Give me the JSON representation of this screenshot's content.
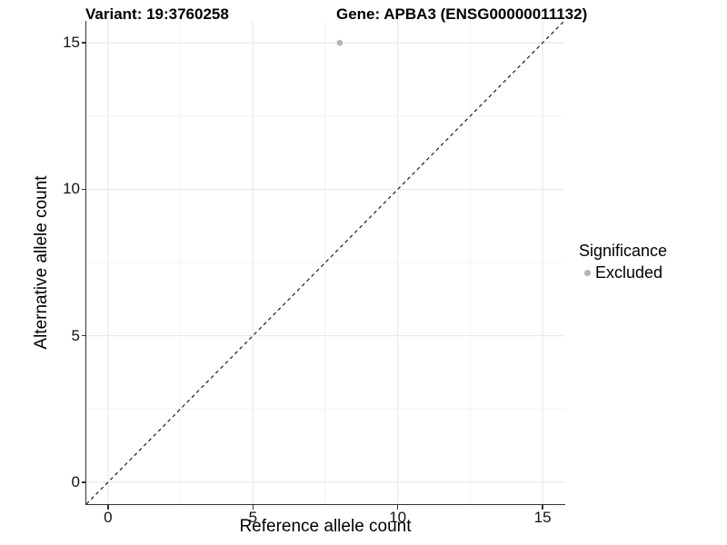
{
  "titles": {
    "variant": "Variant: 19:3760258",
    "gene": "Gene: APBA3 (ENSG00000011132)"
  },
  "axes": {
    "x": {
      "label": "Reference allele count",
      "tick_labels": [
        "0",
        "5",
        "10",
        "15"
      ]
    },
    "y": {
      "label": "Alternative allele count",
      "tick_labels": [
        "0",
        "5",
        "10",
        "15"
      ]
    }
  },
  "legend": {
    "title": "Significance",
    "items": [
      {
        "label": "Excluded",
        "color": "#b4b4b4"
      }
    ]
  },
  "colors": {
    "background": "#ffffff",
    "grid_major": "#e8e8e8",
    "grid_minor": "#f3f3f3",
    "axis_line": "#333333",
    "reference_line": "#1a1a1a",
    "point": "#b4b4b4",
    "text": "#000000"
  },
  "chart_data": {
    "type": "scatter",
    "title": "Variant: 19:3760258 / Gene: APBA3 (ENSG00000011132)",
    "xlabel": "Reference allele count",
    "ylabel": "Alternative allele count",
    "xlim": [
      -0.75,
      15.75
    ],
    "ylim": [
      -0.75,
      15.75
    ],
    "xticks": [
      0,
      5,
      10,
      15
    ],
    "yticks": [
      0,
      5,
      10,
      15
    ],
    "grid": true,
    "legend_position": "right",
    "point_radius": 3.3,
    "series": [
      {
        "name": "Excluded",
        "color": "#b4b4b4",
        "points": [
          {
            "x": 8,
            "y": 15
          }
        ]
      }
    ],
    "reference_line": {
      "type": "identity y=x",
      "style": "dashed",
      "from": [
        -0.75,
        -0.75
      ],
      "to": [
        15.75,
        15.75
      ]
    }
  }
}
